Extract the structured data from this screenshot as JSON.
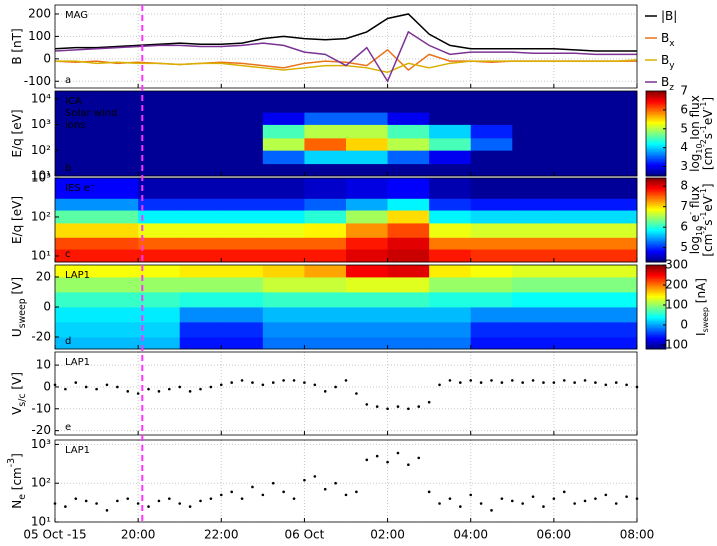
{
  "time_marker": {
    "x": 20.1,
    "color": "#ff33ff"
  },
  "chart_data": [
    {
      "type": "line",
      "letter": "a",
      "annotations": [
        {
          "text": "MAG",
          "color": "#000000"
        }
      ],
      "ylabel": [
        {
          "text": "B [nT]"
        }
      ],
      "xlim": [
        18,
        32
      ],
      "ylim": [
        -130,
        240
      ],
      "yticks": [
        -100,
        0,
        100,
        200
      ],
      "grid": true,
      "x": [
        18,
        18.5,
        19,
        19.5,
        20,
        20.5,
        21,
        21.5,
        22,
        22.5,
        23,
        23.5,
        24,
        24.5,
        25,
        25.5,
        26,
        26.5,
        27,
        27.5,
        28,
        28.5,
        29,
        29.5,
        30,
        30.5,
        31,
        31.5,
        32
      ],
      "series": [
        {
          "name": "|B|",
          "color": "#000000",
          "values": [
            45,
            50,
            50,
            55,
            60,
            65,
            70,
            65,
            65,
            70,
            90,
            100,
            90,
            85,
            90,
            120,
            180,
            200,
            110,
            60,
            45,
            45,
            45,
            45,
            45,
            40,
            35,
            35,
            35
          ]
        },
        {
          "name": "B",
          "sub": "x",
          "color": "#e8731a",
          "values": [
            -10,
            -15,
            -10,
            -20,
            -15,
            -20,
            -25,
            -20,
            -15,
            -20,
            -30,
            -40,
            -20,
            -10,
            -15,
            -30,
            40,
            -50,
            20,
            -10,
            -10,
            -15,
            -10,
            -10,
            -10,
            -10,
            -10,
            -10,
            -10
          ]
        },
        {
          "name": "B",
          "sub": "y",
          "color": "#d9b000",
          "values": [
            -10,
            -10,
            -20,
            -15,
            -20,
            -20,
            -25,
            -20,
            -20,
            -30,
            -40,
            -50,
            -40,
            -30,
            -30,
            -40,
            -60,
            -20,
            -40,
            -20,
            -10,
            -10,
            -10,
            -10,
            -10,
            -10,
            -10,
            -10,
            -5
          ]
        },
        {
          "name": "B",
          "sub": "z",
          "color": "#7b3294",
          "values": [
            35,
            40,
            45,
            50,
            55,
            60,
            60,
            55,
            55,
            60,
            70,
            60,
            30,
            20,
            -30,
            50,
            -100,
            120,
            60,
            20,
            30,
            30,
            30,
            25,
            25,
            25,
            20,
            20,
            20
          ]
        }
      ]
    },
    {
      "type": "heatmap",
      "letter": "b",
      "annotations": [
        {
          "text": "ICA",
          "color": "#ffffff"
        },
        {
          "text": "Solar wind",
          "color": "#ffffff"
        },
        {
          "text": "ions",
          "color": "#ffffff"
        }
      ],
      "ylabel": [
        {
          "text": "E/q [eV]"
        }
      ],
      "xlim": [
        18,
        32
      ],
      "ylim": [
        10,
        20000
      ],
      "ylog": true,
      "yticks": [
        {
          "value": 10,
          "label": "10¹"
        },
        {
          "value": 100,
          "label": "10²"
        },
        {
          "value": 1000,
          "label": "10³"
        },
        {
          "value": 10000,
          "label": "10⁴"
        }
      ],
      "x_bins": [
        18,
        19,
        20,
        21,
        22,
        23,
        24,
        25,
        26,
        27,
        28,
        29,
        30,
        31,
        32
      ],
      "y_bins": [
        10,
        30,
        100,
        300,
        1000,
        3000,
        20000
      ],
      "z": [
        [
          2.6,
          2.6,
          2.6,
          2.6,
          2.6,
          2.6
        ],
        [
          2.6,
          2.6,
          2.6,
          2.6,
          2.6,
          2.6
        ],
        [
          2.6,
          2.6,
          2.6,
          2.6,
          2.6,
          2.6
        ],
        [
          2.6,
          2.6,
          2.6,
          2.6,
          2.6,
          2.6
        ],
        [
          2.6,
          2.6,
          2.6,
          2.6,
          2.6,
          2.6
        ],
        [
          2.6,
          3.5,
          5,
          4.5,
          3,
          2.6
        ],
        [
          2.6,
          4,
          6,
          5,
          3.5,
          2.6
        ],
        [
          2.6,
          4,
          5.5,
          5,
          3.5,
          2.6
        ],
        [
          2.6,
          3.5,
          5,
          4.5,
          3,
          2.6
        ],
        [
          2.6,
          3,
          4.5,
          4,
          2.6,
          2.6
        ],
        [
          2.6,
          2.6,
          3.5,
          3.2,
          2.6,
          2.6
        ],
        [
          2.6,
          2.6,
          2.6,
          2.6,
          2.6,
          2.6
        ],
        [
          2.6,
          2.6,
          2.6,
          2.6,
          2.6,
          2.6
        ],
        [
          2.6,
          2.6,
          2.6,
          2.6,
          2.6,
          2.6
        ]
      ],
      "colorbar": {
        "colormap": "jet",
        "clim": [
          2.5,
          7
        ],
        "ticks": [
          3,
          4,
          5,
          6,
          7
        ],
        "label": [
          [
            {
              "text": "log"
            },
            {
              "text": "10",
              "sub": true
            },
            {
              "text": " Ion flux"
            }
          ],
          [
            {
              "text": "[cm"
            },
            {
              "text": "-2",
              "sup": true
            },
            {
              "text": "s"
            },
            {
              "text": "-1",
              "sup": true
            },
            {
              "text": "eV"
            },
            {
              "text": "-1",
              "sup": true
            },
            {
              "text": "]"
            }
          ]
        ]
      }
    },
    {
      "type": "heatmap",
      "letter": "c",
      "annotations": [
        {
          "text": "IES e⁻",
          "color": "#ffffff"
        }
      ],
      "ylabel": [
        {
          "text": "E/q [eV]"
        }
      ],
      "xlim": [
        18,
        32
      ],
      "ylim": [
        7,
        1000
      ],
      "ylog": true,
      "yticks": [
        {
          "value": 10,
          "label": "10¹"
        },
        {
          "value": 100,
          "label": "10²"
        },
        {
          "value": 1000,
          "label": "10³"
        }
      ],
      "x_bins": [
        18,
        19,
        20,
        21,
        22,
        23,
        24,
        25,
        26,
        27,
        28,
        29,
        30,
        31,
        32
      ],
      "y_bins": [
        7,
        15,
        30,
        70,
        150,
        300,
        1000
      ],
      "z": [
        [
          7.8,
          7.6,
          7,
          6.2,
          5.4,
          4.8
        ],
        [
          7.8,
          7.6,
          7,
          6.2,
          5.4,
          4.8
        ],
        [
          7.8,
          7.5,
          6.8,
          5.8,
          5,
          4.5
        ],
        [
          7.8,
          7.5,
          6.8,
          5.8,
          5,
          4.5
        ],
        [
          7.8,
          7.5,
          6.8,
          5.8,
          5,
          4.5
        ],
        [
          7.8,
          7.5,
          6.8,
          5.8,
          5,
          4.5
        ],
        [
          7.8,
          7.5,
          6.9,
          6,
          5.2,
          4.6
        ],
        [
          8,
          7.8,
          7.3,
          6.5,
          5.5,
          4.7
        ],
        [
          8.1,
          8,
          7.6,
          7,
          5.8,
          4.8
        ],
        [
          7.8,
          7.4,
          6.8,
          5.8,
          5,
          4.5
        ],
        [
          7.7,
          7.4,
          6.7,
          5.7,
          4.9,
          4.4
        ],
        [
          7.7,
          7.4,
          6.7,
          5.7,
          4.9,
          4.4
        ],
        [
          7.7,
          7.4,
          6.7,
          5.7,
          4.9,
          4.4
        ],
        [
          7.7,
          7.4,
          6.7,
          5.7,
          4.9,
          4.4
        ]
      ],
      "colorbar": {
        "colormap": "jet",
        "clim": [
          4.3,
          8.4
        ],
        "ticks": [
          5,
          6,
          7,
          8
        ],
        "label": [
          [
            {
              "text": "log"
            },
            {
              "text": "10",
              "sub": true
            },
            {
              "text": " e"
            },
            {
              "text": "-",
              "sup": true
            },
            {
              "text": " flux"
            }
          ],
          [
            {
              "text": "[cm"
            },
            {
              "text": "-2",
              "sup": true
            },
            {
              "text": "s"
            },
            {
              "text": "-1",
              "sup": true
            },
            {
              "text": "eV"
            },
            {
              "text": "-1",
              "sup": true
            },
            {
              "text": "]"
            }
          ]
        ]
      }
    },
    {
      "type": "heatmap",
      "letter": "d",
      "annotations": [
        {
          "text": "LAP1",
          "color": "#000000"
        }
      ],
      "ylabel": [
        {
          "text": "U"
        },
        {
          "text": "sweep",
          "sub": true
        },
        {
          "text": " [V]"
        }
      ],
      "xlim": [
        18,
        32
      ],
      "ylim": [
        -28,
        28
      ],
      "yticks": [
        -20,
        0,
        20
      ],
      "x_bins": [
        18,
        19,
        20,
        21,
        22,
        23,
        24,
        25,
        26,
        27,
        28,
        29,
        30,
        31,
        32
      ],
      "y_bins": [
        -28,
        -20,
        -10,
        0,
        10,
        20,
        28
      ],
      "z": [
        [
          10,
          20,
          30,
          60,
          100,
          140
        ],
        [
          10,
          20,
          30,
          60,
          100,
          140
        ],
        [
          10,
          20,
          30,
          60,
          100,
          140
        ],
        [
          -60,
          -50,
          -10,
          50,
          100,
          150
        ],
        [
          -60,
          -50,
          -10,
          50,
          100,
          150
        ],
        [
          -20,
          -10,
          10,
          60,
          120,
          160
        ],
        [
          -20,
          -10,
          10,
          60,
          120,
          180
        ],
        [
          -20,
          -10,
          10,
          60,
          130,
          250
        ],
        [
          -20,
          -10,
          10,
          60,
          130,
          260
        ],
        [
          -20,
          -10,
          10,
          50,
          100,
          150
        ],
        [
          -60,
          -50,
          -10,
          50,
          100,
          140
        ],
        [
          -60,
          -50,
          -10,
          40,
          90,
          130
        ],
        [
          -60,
          -50,
          -10,
          40,
          90,
          130
        ],
        [
          -60,
          -50,
          -10,
          40,
          90,
          130
        ]
      ],
      "colorbar": {
        "colormap": "jet",
        "clim": [
          -120,
          300
        ],
        "ticks": [
          -100,
          0,
          100,
          200,
          300
        ],
        "label": [
          [
            {
              "text": "I"
            },
            {
              "text": "sweep",
              "sub": true
            },
            {
              "text": " [nA]"
            }
          ]
        ]
      }
    },
    {
      "type": "scatter",
      "letter": "e",
      "annotations": [
        {
          "text": "LAP1",
          "color": "#000000"
        }
      ],
      "ylabel": [
        {
          "text": "V"
        },
        {
          "text": "s/c",
          "sub": true
        },
        {
          "text": " [V]"
        }
      ],
      "xlim": [
        18,
        32
      ],
      "ylim": [
        -22,
        16
      ],
      "yticks": [
        -20,
        -10,
        0,
        10
      ],
      "grid": true,
      "x": [
        18,
        18.25,
        18.5,
        18.75,
        19,
        19.25,
        19.5,
        19.75,
        20,
        20.25,
        20.5,
        20.75,
        21,
        21.25,
        21.5,
        21.75,
        22,
        22.25,
        22.5,
        22.75,
        23,
        23.25,
        23.5,
        23.75,
        24,
        24.25,
        24.5,
        24.75,
        25,
        25.25,
        25.5,
        25.75,
        26,
        26.25,
        26.5,
        26.75,
        27,
        27.25,
        27.5,
        27.75,
        28,
        28.25,
        28.5,
        28.75,
        29,
        29.25,
        29.5,
        29.75,
        30,
        30.25,
        30.5,
        30.75,
        31,
        31.25,
        31.5,
        31.75,
        32
      ],
      "values": [
        1,
        -1,
        2,
        0,
        -1,
        1,
        0,
        -2,
        -3,
        -1,
        -2,
        -1,
        0,
        -2,
        -1,
        0,
        1,
        2,
        3,
        2,
        1,
        2,
        3,
        3,
        2,
        1,
        -2,
        0,
        3,
        -3,
        -8,
        -9,
        -10,
        -9,
        -10,
        -9,
        -7,
        1,
        3,
        2,
        3,
        2,
        3,
        2,
        3,
        2,
        3,
        2,
        2,
        3,
        2,
        3,
        2,
        1,
        2,
        1,
        0
      ]
    },
    {
      "type": "scatter",
      "letter": null,
      "annotations": [
        {
          "text": "LAP1",
          "color": "#000000"
        }
      ],
      "ylabel": [
        {
          "text": "N"
        },
        {
          "text": "e",
          "sub": true
        },
        {
          "text": " [cm"
        },
        {
          "text": "-3",
          "sup": true
        },
        {
          "text": "]"
        }
      ],
      "xlim": [
        18,
        32
      ],
      "ylim": [
        10,
        1300
      ],
      "ylog": true,
      "grid": true,
      "yticks": [
        {
          "value": 10,
          "label": "10¹"
        },
        {
          "value": 100,
          "label": "10²"
        },
        {
          "value": 1000,
          "label": "10³"
        }
      ],
      "xticks": [
        {
          "value": 18,
          "label": "05 Oct -15"
        },
        {
          "value": 20,
          "label": "20:00"
        },
        {
          "value": 22,
          "label": "22:00"
        },
        {
          "value": 24,
          "label": "06 Oct"
        },
        {
          "value": 26,
          "label": "02:00"
        },
        {
          "value": 28,
          "label": "04:00"
        },
        {
          "value": 30,
          "label": "06:00"
        },
        {
          "value": 32,
          "label": "08:00"
        }
      ],
      "x": [
        18,
        18.25,
        18.5,
        18.75,
        19,
        19.25,
        19.5,
        19.75,
        20,
        20.25,
        20.5,
        20.75,
        21,
        21.25,
        21.5,
        21.75,
        22,
        22.25,
        22.5,
        22.75,
        23,
        23.25,
        23.5,
        23.75,
        24,
        24.25,
        24.5,
        24.75,
        25,
        25.25,
        25.5,
        25.75,
        26,
        26.25,
        26.5,
        26.75,
        27,
        27.25,
        27.5,
        27.75,
        28,
        28.25,
        28.5,
        28.75,
        29,
        29.25,
        29.5,
        29.75,
        30,
        30.25,
        30.5,
        30.75,
        31,
        31.25,
        31.5,
        31.75,
        32
      ],
      "values": [
        30,
        25,
        40,
        35,
        30,
        20,
        35,
        40,
        30,
        25,
        35,
        40,
        30,
        25,
        35,
        40,
        50,
        60,
        40,
        80,
        50,
        100,
        60,
        40,
        120,
        150,
        70,
        100,
        50,
        60,
        400,
        500,
        350,
        600,
        300,
        450,
        60,
        30,
        40,
        25,
        50,
        30,
        20,
        40,
        35,
        30,
        45,
        25,
        40,
        60,
        30,
        35,
        40,
        50,
        30,
        45,
        40
      ]
    }
  ]
}
